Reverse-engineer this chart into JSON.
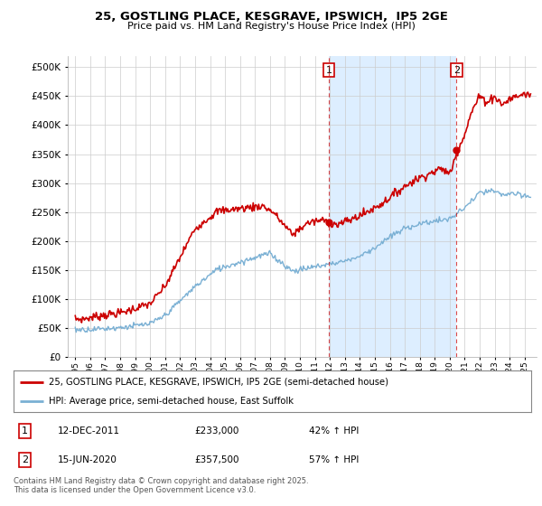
{
  "title": "25, GOSTLING PLACE, KESGRAVE, IPSWICH,  IP5 2GE",
  "subtitle": "Price paid vs. HM Land Registry's House Price Index (HPI)",
  "legend_line1": "25, GOSTLING PLACE, KESGRAVE, IPSWICH, IP5 2GE (semi-detached house)",
  "legend_line2": "HPI: Average price, semi-detached house, East Suffolk",
  "footnote": "Contains HM Land Registry data © Crown copyright and database right 2025.\nThis data is licensed under the Open Government Licence v3.0.",
  "sale1_date": "12-DEC-2011",
  "sale1_price": "£233,000",
  "sale1_hpi": "42% ↑ HPI",
  "sale2_date": "15-JUN-2020",
  "sale2_price": "£357,500",
  "sale2_hpi": "57% ↑ HPI",
  "red_color": "#cc0000",
  "blue_color": "#7ab0d4",
  "bg_color": "#ffffff",
  "shade_color": "#ddeeff",
  "grid_color": "#cccccc",
  "ylim": [
    0,
    520000
  ],
  "yticks": [
    0,
    50000,
    100000,
    150000,
    200000,
    250000,
    300000,
    350000,
    400000,
    450000,
    500000
  ],
  "sale1_x": 2011.92,
  "sale2_x": 2020.46,
  "sale1_y": 233000,
  "sale2_y": 357500,
  "xmin": 1994.5,
  "xmax": 2025.8
}
